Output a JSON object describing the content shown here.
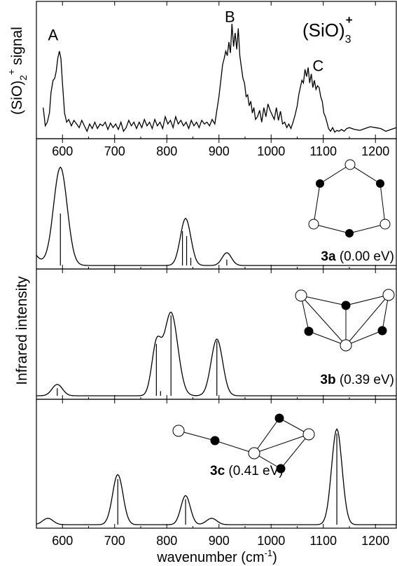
{
  "chart_data": [
    {
      "type": "line",
      "name": "experiment",
      "ylabel_main": "(SiO)",
      "ylabel_sub": "2",
      "ylabel_sup": "+",
      "ylabel_rest": " signal",
      "species_main": "(SiO)",
      "species_sub": "3",
      "species_sup": "+",
      "xlim": [
        550,
        1240
      ],
      "xticks": [
        600,
        700,
        800,
        900,
        1000,
        1100,
        1200
      ],
      "peak_labels": [
        {
          "text": "A",
          "x": 582,
          "y": 1.02
        },
        {
          "text": "B",
          "x": 921,
          "y": 1.22
        },
        {
          "text": "C",
          "x": 1090,
          "y": 0.68
        }
      ],
      "x": [
        563,
        567,
        571,
        575,
        578,
        582,
        585,
        588,
        591,
        594,
        597,
        600,
        604,
        608,
        612,
        617,
        622,
        627,
        632,
        637,
        642,
        647,
        652,
        657,
        662,
        667,
        672,
        677,
        682,
        687,
        692,
        697,
        702,
        707,
        712,
        717,
        722,
        727,
        732,
        737,
        742,
        747,
        752,
        757,
        762,
        767,
        772,
        777,
        782,
        787,
        792,
        797,
        802,
        807,
        812,
        817,
        822,
        827,
        832,
        837,
        842,
        847,
        852,
        857,
        862,
        867,
        872,
        877,
        882,
        887,
        892,
        896,
        900,
        904,
        907,
        910,
        913,
        916,
        919,
        922,
        925,
        928,
        931,
        934,
        937,
        940,
        943,
        946,
        949,
        952,
        955,
        958,
        961,
        964,
        967,
        970,
        974,
        978,
        982,
        986,
        990,
        994,
        998,
        1002,
        1006,
        1010,
        1014,
        1018,
        1022,
        1026,
        1030,
        1034,
        1038,
        1042,
        1046,
        1050,
        1053,
        1056,
        1059,
        1062,
        1065,
        1068,
        1071,
        1074,
        1077,
        1080,
        1083,
        1086,
        1089,
        1092,
        1095,
        1098,
        1101,
        1104,
        1107,
        1110,
        1114,
        1118,
        1122,
        1126,
        1130,
        1135,
        1140,
        1145,
        1150,
        1160,
        1170,
        1180,
        1190,
        1200,
        1210,
        1220,
        1230,
        1240
      ],
      "values": [
        0.28,
        0.08,
        0.12,
        0.22,
        0.45,
        0.58,
        0.6,
        0.68,
        0.82,
        0.9,
        0.82,
        0.55,
        0.22,
        0.12,
        0.15,
        0.08,
        0.14,
        0.1,
        0.06,
        0.14,
        0.08,
        0.02,
        0.1,
        0.05,
        0.12,
        0.05,
        0.1,
        0.08,
        0.12,
        0.04,
        0.11,
        0.06,
        0.1,
        0.04,
        0.12,
        0.02,
        0.06,
        0.14,
        0.08,
        0.12,
        0.05,
        0.12,
        0.06,
        0.15,
        0.08,
        0.12,
        0.05,
        0.15,
        0.08,
        0.12,
        0.05,
        0.18,
        0.1,
        0.14,
        0.06,
        0.18,
        0.1,
        0.14,
        0.08,
        0.12,
        0.05,
        0.14,
        0.08,
        0.12,
        0.06,
        0.14,
        0.1,
        0.12,
        0.08,
        0.15,
        0.1,
        0.25,
        0.4,
        0.6,
        0.75,
        0.82,
        0.9,
        0.85,
        1.0,
        0.88,
        1.2,
        0.95,
        1.1,
        0.92,
        1.15,
        0.85,
        0.72,
        0.6,
        0.55,
        0.4,
        0.42,
        0.3,
        0.35,
        0.22,
        0.28,
        0.15,
        0.18,
        0.25,
        0.12,
        0.28,
        0.18,
        0.32,
        0.25,
        0.2,
        0.15,
        0.28,
        0.14,
        0.24,
        0.1,
        0.12,
        0.06,
        0.1,
        0.05,
        0.12,
        0.2,
        0.3,
        0.42,
        0.5,
        0.58,
        0.55,
        0.7,
        0.62,
        0.72,
        0.55,
        0.65,
        0.5,
        0.58,
        0.48,
        0.52,
        0.5,
        0.4,
        0.35,
        0.22,
        0.18,
        0.12,
        0.05,
        0.02,
        0.06,
        0.01,
        0.03,
        0.02,
        0.04,
        0.02,
        0.05,
        0.06,
        0.04,
        0.03,
        0.05,
        0.07,
        0.06,
        0.05,
        0.02,
        0.04,
        0.06
      ]
    },
    {
      "type": "line",
      "name": "3a",
      "label_bold": "3a",
      "label_energy": " (0.00 eV)",
      "xlim": [
        550,
        1240
      ],
      "xticks": [
        600,
        700,
        800,
        900,
        1000,
        1100,
        1200
      ],
      "peaks": [
        {
          "center": 596,
          "height": 1.0,
          "width": 13
        },
        {
          "center": 836,
          "height": 0.48,
          "width": 10
        },
        {
          "center": 915,
          "height": 0.13,
          "width": 9
        }
      ],
      "sticks": [
        {
          "x": 596,
          "height": 0.53
        },
        {
          "x": 830,
          "height": 0.35
        },
        {
          "x": 838,
          "height": 0.3
        },
        {
          "x": 846,
          "height": 0.08
        },
        {
          "x": 915,
          "height": 0.06
        }
      ]
    },
    {
      "type": "line",
      "name": "3b",
      "label_bold": "3b",
      "label_energy": " (0.39 eV)",
      "xlim": [
        550,
        1240
      ],
      "xticks": [
        600,
        700,
        800,
        900,
        1000,
        1100,
        1200
      ],
      "peaks": [
        {
          "center": 590,
          "height": 0.12,
          "width": 10
        },
        {
          "center": 780,
          "height": 0.52,
          "width": 9
        },
        {
          "center": 808,
          "height": 0.88,
          "width": 13
        },
        {
          "center": 896,
          "height": 0.6,
          "width": 11
        }
      ],
      "sticks": [
        {
          "x": 590,
          "height": 0.08
        },
        {
          "x": 780,
          "height": 0.55
        },
        {
          "x": 788,
          "height": 0.05
        },
        {
          "x": 808,
          "height": 0.85
        },
        {
          "x": 896,
          "height": 0.58
        }
      ]
    },
    {
      "type": "line",
      "name": "3c",
      "label_bold": "3c",
      "label_energy": " (0.41 eV)",
      "xlabel_main": "wavenumber (cm",
      "xlabel_sup": "-1",
      "xlabel_end": ")",
      "xlim": [
        550,
        1240
      ],
      "xticks": [
        600,
        700,
        800,
        900,
        1000,
        1100,
        1200
      ],
      "peaks": [
        {
          "center": 572,
          "height": 0.07,
          "width": 10
        },
        {
          "center": 706,
          "height": 0.55,
          "width": 10
        },
        {
          "center": 836,
          "height": 0.32,
          "width": 9
        },
        {
          "center": 886,
          "height": 0.07,
          "width": 10
        },
        {
          "center": 1126,
          "height": 1.05,
          "width": 10
        }
      ],
      "sticks": [
        {
          "x": 706,
          "height": 0.5
        },
        {
          "x": 836,
          "height": 0.28
        },
        {
          "x": 1126,
          "height": 1.0
        }
      ]
    }
  ],
  "y_axis_label": "Infrared intensity"
}
